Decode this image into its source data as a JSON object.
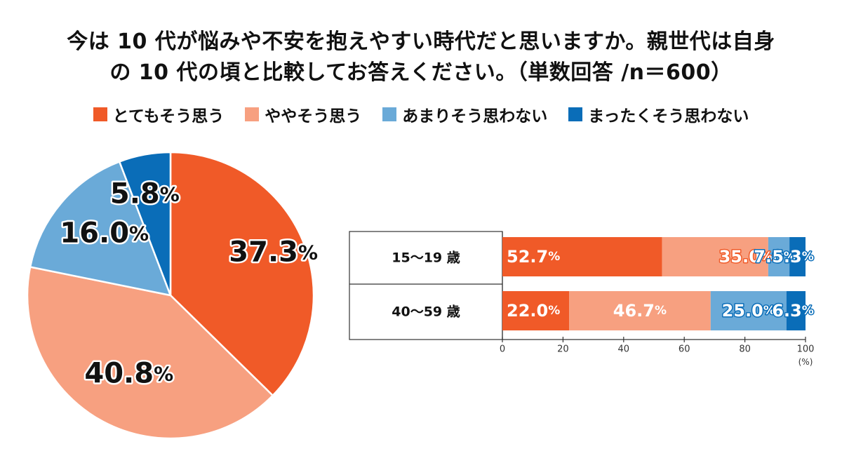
{
  "title": {
    "line1": "今は 10 代が悩みや不安を抱えやすい時代だと思いますか。親世代は自身",
    "line2": "の 10 代の頃と比較してお答えください。（単数回答 /n＝600）"
  },
  "chart_data": [
    {
      "type": "pie",
      "categories": [
        "とてもそう思う",
        "ややそう思う",
        "あまりそう思わない",
        "まったくそう思わない"
      ],
      "values": [
        37.3,
        40.8,
        16.0,
        5.8
      ],
      "labels": [
        "37.3%",
        "40.8%",
        "16.0%",
        "5.8%"
      ],
      "colors": [
        "#f05a28",
        "#f7a080",
        "#6aaad8",
        "#0a6db8"
      ],
      "legend_position": "top"
    },
    {
      "type": "bar",
      "orientation": "horizontal",
      "stacked": true,
      "categories": [
        "15〜19 歳",
        "40〜59 歳"
      ],
      "series": [
        {
          "name": "とてもそう思う",
          "values": [
            52.7,
            22.0
          ],
          "labels": [
            "52.7%",
            "22.0%"
          ],
          "color": "#f05a28"
        },
        {
          "name": "ややそう思う",
          "values": [
            35.0,
            46.7
          ],
          "labels": [
            "35.0%",
            "46.7%"
          ],
          "color": "#f7a080"
        },
        {
          "name": "あまりそう思わない",
          "values": [
            7.0,
            25.0
          ],
          "labels": [
            "7.0%",
            "25.0%"
          ],
          "color": "#6aaad8"
        },
        {
          "name": "まったくそう思わない",
          "values": [
            5.3,
            6.3
          ],
          "labels": [
            "5.3%",
            "6.3%"
          ],
          "color": "#0a6db8"
        }
      ],
      "xlim": [
        0,
        100
      ],
      "xticks": [
        "0",
        "20",
        "40",
        "60",
        "80",
        "100"
      ],
      "xunit": "(%)"
    }
  ]
}
